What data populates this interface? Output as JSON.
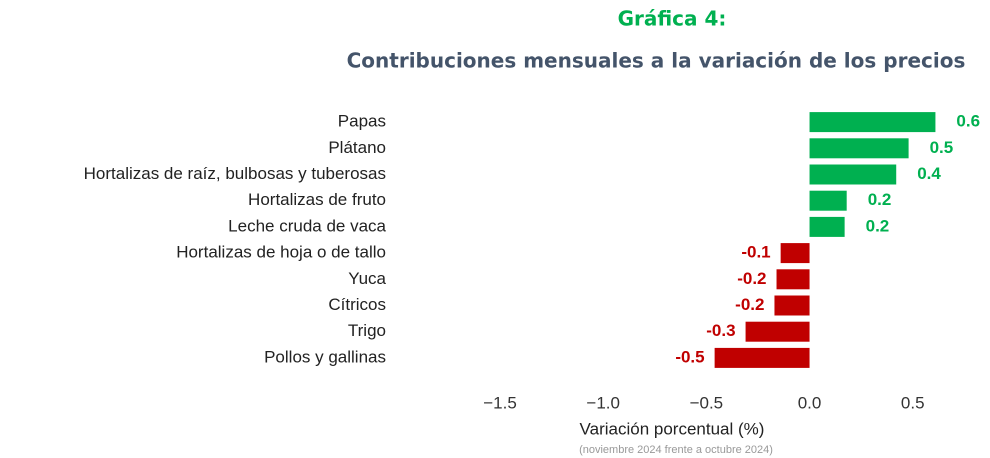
{
  "chart_data": {
    "type": "barh",
    "title": "Gráfica 4:",
    "subtitle": "Contribuciones mensuales a la variación de los precios",
    "x_label": "Variación porcentual (%)",
    "note": "(noviembre 2024 frente a octubre 2024)",
    "categories": [
      "Papas",
      "Plátano",
      "Hortalizas de raíz, bulbosas y tuberosas",
      "Hortalizas de fruto",
      "Leche cruda de vaca",
      "Hortalizas de hoja o de tallo",
      "Yuca",
      "Cítricos",
      "Trigo",
      "Pollos y gallinas"
    ],
    "values": [
      0.61,
      0.48,
      0.42,
      0.18,
      0.17,
      -0.14,
      -0.16,
      -0.17,
      -0.31,
      -0.46
    ],
    "value_labels": [
      "0.6",
      "0.5",
      "0.4",
      "0.2",
      "0.2",
      "-0.1",
      "-0.2",
      "-0.2",
      "-0.3",
      "-0.5"
    ],
    "positive_color": "#00b050",
    "negative_color": "#c00000",
    "xlim": [
      -1.5,
      0.7
    ],
    "xticks": [
      {
        "value": -1.5,
        "label": "−1.5"
      },
      {
        "value": -1.0,
        "label": "−1.0"
      },
      {
        "value": -0.5,
        "label": "−0.5"
      },
      {
        "value": 0,
        "label": "0.0"
      },
      0.5
    ],
    "grid": false
  }
}
